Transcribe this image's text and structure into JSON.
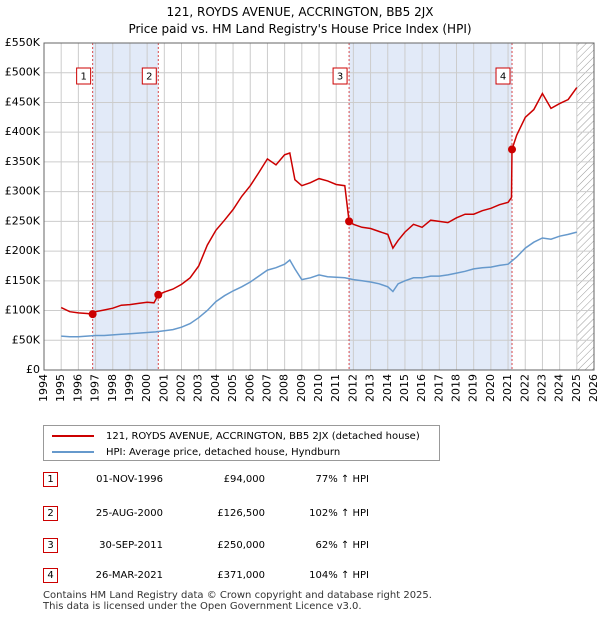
{
  "chart_data": {
    "type": "line",
    "title": "121, ROYDS AVENUE, ACCRINGTON, BB5 2JX",
    "subtitle": "Price paid vs. HM Land Registry's House Price Index (HPI)",
    "xlim": [
      1994,
      2026
    ],
    "ylim": [
      0,
      550000
    ],
    "y_ticks": [
      0,
      50000,
      100000,
      150000,
      200000,
      250000,
      300000,
      350000,
      400000,
      450000,
      500000,
      550000
    ],
    "y_tick_labels": [
      "£0",
      "£50K",
      "£100K",
      "£150K",
      "£200K",
      "£250K",
      "£300K",
      "£350K",
      "£400K",
      "£450K",
      "£500K",
      "£550K"
    ],
    "x_ticks": [
      1994,
      1995,
      1996,
      1997,
      1998,
      1999,
      2000,
      2001,
      2002,
      2003,
      2004,
      2005,
      2006,
      2007,
      2008,
      2009,
      2010,
      2011,
      2012,
      2013,
      2014,
      2015,
      2016,
      2017,
      2018,
      2019,
      2020,
      2021,
      2022,
      2023,
      2024,
      2025,
      2026
    ],
    "x_tick_labels": [
      "1994",
      "1995",
      "1996",
      "1997",
      "1998",
      "1999",
      "2000",
      "2001",
      "2002",
      "2003",
      "2004",
      "2005",
      "2006",
      "2007",
      "2008",
      "2009",
      "2010",
      "2011",
      "2012",
      "2013",
      "2014",
      "2015",
      "2016",
      "2017",
      "2018",
      "2019",
      "2020",
      "2021",
      "2022",
      "2023",
      "2024",
      "2025",
      "2026"
    ],
    "grid": true,
    "data_end_year": 2025.0,
    "shaded_ranges": [
      [
        1996.83,
        2000.65
      ],
      [
        2011.75,
        2021.23
      ]
    ],
    "series": [
      {
        "name": "121, ROYDS AVENUE, ACCRINGTON, BB5 2JX (detached house)",
        "color": "#cc0000",
        "points": [
          [
            1995.0,
            105000
          ],
          [
            1995.5,
            98000
          ],
          [
            1996.0,
            96000
          ],
          [
            1996.5,
            95000
          ],
          [
            1996.83,
            94000
          ],
          [
            1997.0,
            98000
          ],
          [
            1997.5,
            101000
          ],
          [
            1998.0,
            104000
          ],
          [
            1998.5,
            109000
          ],
          [
            1999.0,
            110000
          ],
          [
            1999.5,
            112000
          ],
          [
            2000.0,
            114000
          ],
          [
            2000.4,
            113000
          ],
          [
            2000.65,
            126500
          ],
          [
            2001.0,
            131000
          ],
          [
            2001.5,
            136000
          ],
          [
            2002.0,
            144000
          ],
          [
            2002.5,
            155000
          ],
          [
            2003.0,
            175000
          ],
          [
            2003.5,
            210000
          ],
          [
            2004.0,
            235000
          ],
          [
            2004.5,
            252000
          ],
          [
            2005.0,
            270000
          ],
          [
            2005.5,
            292000
          ],
          [
            2006.0,
            310000
          ],
          [
            2006.5,
            332000
          ],
          [
            2007.0,
            355000
          ],
          [
            2007.5,
            345000
          ],
          [
            2008.0,
            362000
          ],
          [
            2008.3,
            365000
          ],
          [
            2008.6,
            320000
          ],
          [
            2009.0,
            310000
          ],
          [
            2009.5,
            315000
          ],
          [
            2010.0,
            322000
          ],
          [
            2010.5,
            318000
          ],
          [
            2011.0,
            312000
          ],
          [
            2011.5,
            310000
          ],
          [
            2011.75,
            250000
          ],
          [
            2012.0,
            245000
          ],
          [
            2012.5,
            240000
          ],
          [
            2013.0,
            238000
          ],
          [
            2013.5,
            233000
          ],
          [
            2014.0,
            228000
          ],
          [
            2014.3,
            205000
          ],
          [
            2014.6,
            218000
          ],
          [
            2015.0,
            232000
          ],
          [
            2015.5,
            245000
          ],
          [
            2016.0,
            240000
          ],
          [
            2016.5,
            252000
          ],
          [
            2017.0,
            250000
          ],
          [
            2017.5,
            248000
          ],
          [
            2018.0,
            256000
          ],
          [
            2018.5,
            262000
          ],
          [
            2019.0,
            262000
          ],
          [
            2019.5,
            268000
          ],
          [
            2020.0,
            272000
          ],
          [
            2020.5,
            278000
          ],
          [
            2021.0,
            282000
          ],
          [
            2021.2,
            290000
          ],
          [
            2021.23,
            371000
          ],
          [
            2021.5,
            395000
          ],
          [
            2022.0,
            425000
          ],
          [
            2022.5,
            438000
          ],
          [
            2023.0,
            465000
          ],
          [
            2023.5,
            440000
          ],
          [
            2024.0,
            448000
          ],
          [
            2024.5,
            455000
          ],
          [
            2025.0,
            475000
          ]
        ]
      },
      {
        "name": "HPI: Average price, detached house, Hyndburn",
        "color": "#6699cc",
        "points": [
          [
            1995.0,
            57000
          ],
          [
            1995.5,
            56000
          ],
          [
            1996.0,
            56000
          ],
          [
            1996.5,
            57000
          ],
          [
            1997.0,
            58000
          ],
          [
            1997.5,
            58000
          ],
          [
            1998.0,
            59000
          ],
          [
            1998.5,
            60000
          ],
          [
            1999.0,
            61000
          ],
          [
            1999.5,
            62000
          ],
          [
            2000.0,
            63000
          ],
          [
            2000.5,
            64000
          ],
          [
            2001.0,
            66000
          ],
          [
            2001.5,
            68000
          ],
          [
            2002.0,
            72000
          ],
          [
            2002.5,
            78000
          ],
          [
            2003.0,
            88000
          ],
          [
            2003.5,
            100000
          ],
          [
            2004.0,
            115000
          ],
          [
            2004.5,
            125000
          ],
          [
            2005.0,
            133000
          ],
          [
            2005.5,
            140000
          ],
          [
            2006.0,
            148000
          ],
          [
            2006.5,
            158000
          ],
          [
            2007.0,
            168000
          ],
          [
            2007.5,
            172000
          ],
          [
            2008.0,
            178000
          ],
          [
            2008.3,
            185000
          ],
          [
            2008.6,
            170000
          ],
          [
            2009.0,
            152000
          ],
          [
            2009.5,
            155000
          ],
          [
            2010.0,
            160000
          ],
          [
            2010.5,
            157000
          ],
          [
            2011.0,
            156000
          ],
          [
            2011.5,
            155000
          ],
          [
            2012.0,
            152000
          ],
          [
            2012.5,
            150000
          ],
          [
            2013.0,
            148000
          ],
          [
            2013.5,
            145000
          ],
          [
            2014.0,
            140000
          ],
          [
            2014.3,
            132000
          ],
          [
            2014.6,
            145000
          ],
          [
            2015.0,
            150000
          ],
          [
            2015.5,
            155000
          ],
          [
            2016.0,
            155000
          ],
          [
            2016.5,
            158000
          ],
          [
            2017.0,
            158000
          ],
          [
            2017.5,
            160000
          ],
          [
            2018.0,
            163000
          ],
          [
            2018.5,
            166000
          ],
          [
            2019.0,
            170000
          ],
          [
            2019.5,
            172000
          ],
          [
            2020.0,
            173000
          ],
          [
            2020.5,
            176000
          ],
          [
            2021.0,
            178000
          ],
          [
            2021.5,
            190000
          ],
          [
            2022.0,
            205000
          ],
          [
            2022.5,
            215000
          ],
          [
            2023.0,
            222000
          ],
          [
            2023.5,
            220000
          ],
          [
            2024.0,
            225000
          ],
          [
            2024.5,
            228000
          ],
          [
            2025.0,
            232000
          ]
        ]
      }
    ],
    "sale_markers": [
      {
        "label": "1",
        "x": 1996.83,
        "y": 94000
      },
      {
        "label": "2",
        "x": 2000.65,
        "y": 126500
      },
      {
        "label": "3",
        "x": 2011.75,
        "y": 250000
      },
      {
        "label": "4",
        "x": 2021.23,
        "y": 371000
      }
    ]
  },
  "legend": {
    "property_label": "121, ROYDS AVENUE, ACCRINGTON, BB5 2JX (detached house)",
    "hpi_label": "HPI: Average price, detached house, Hyndburn"
  },
  "transactions": [
    {
      "num": "1",
      "date": "01-NOV-1996",
      "price": "£94,000",
      "hpi": "77% ↑ HPI"
    },
    {
      "num": "2",
      "date": "25-AUG-2000",
      "price": "£126,500",
      "hpi": "102% ↑ HPI"
    },
    {
      "num": "3",
      "date": "30-SEP-2011",
      "price": "£250,000",
      "hpi": "62% ↑ HPI"
    },
    {
      "num": "4",
      "date": "26-MAR-2021",
      "price": "£371,000",
      "hpi": "104% ↑ HPI"
    }
  ],
  "footer": {
    "line1": "Contains HM Land Registry data © Crown copyright and database right 2025.",
    "line2": "This data is licensed under the Open Government Licence v3.0."
  }
}
